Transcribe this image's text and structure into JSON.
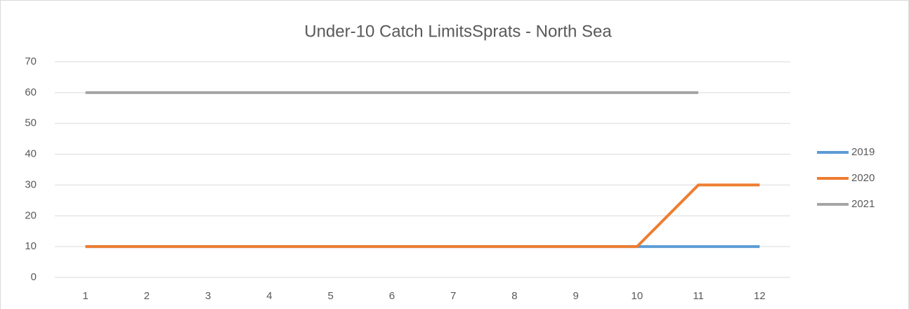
{
  "chart_data": {
    "type": "line",
    "title": "Under-10 Catch LimitsSprats - North Sea",
    "categories": [
      1,
      2,
      3,
      4,
      5,
      6,
      7,
      8,
      9,
      10,
      11,
      12
    ],
    "series": [
      {
        "name": "2019",
        "color": "#5b9bd5",
        "values": [
          10,
          10,
          10,
          10,
          10,
          10,
          10,
          10,
          10,
          10,
          10,
          10
        ]
      },
      {
        "name": "2020",
        "color": "#ed7d31",
        "values": [
          10,
          10,
          10,
          10,
          10,
          10,
          10,
          10,
          10,
          10,
          30,
          30
        ]
      },
      {
        "name": "2021",
        "color": "#a5a5a5",
        "values": [
          60,
          60,
          60,
          60,
          60,
          60,
          60,
          60,
          60,
          60,
          60,
          null
        ]
      }
    ],
    "ylim": [
      0,
      70
    ],
    "yticks": [
      0,
      10,
      20,
      30,
      40,
      50,
      60,
      70
    ],
    "grid": true,
    "legend": "right"
  }
}
